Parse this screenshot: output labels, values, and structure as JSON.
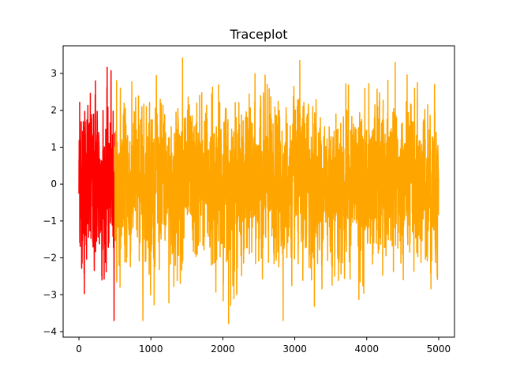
{
  "chart_data": {
    "type": "line",
    "title": "Traceplot",
    "xlabel": "",
    "ylabel": "",
    "xlim": [
      -220,
      5220
    ],
    "ylim": [
      -4.15,
      3.75
    ],
    "xticks": [
      0,
      1000,
      2000,
      3000,
      4000,
      5000
    ],
    "yticks": [
      -4,
      -3,
      -2,
      -1,
      0,
      1,
      2,
      3
    ],
    "tick_label_format": "minus-sign",
    "n_samples": 5000,
    "series": [
      {
        "color": "#ff0000",
        "x_range": [
          0,
          499
        ],
        "values_summary": "burn-in segment oscillating between about -3.0 and 2.8"
      },
      {
        "color": "#ffa500",
        "x_range": [
          500,
          4999
        ],
        "values_summary": "main segment oscillating roughly between -3.8 and 3.4, centered near 0"
      }
    ],
    "notable_points": [
      {
        "x": 1440,
        "y": 3.42
      },
      {
        "x": 3070,
        "y": 3.35
      },
      {
        "x": 2080,
        "y": -3.78
      },
      {
        "x": 1250,
        "y": -3.22
      },
      {
        "x": 75,
        "y": -2.97
      },
      {
        "x": 10,
        "y": -2.75
      },
      {
        "x": 10,
        "y": 2.22
      },
      {
        "x": 230,
        "y": 2.8
      }
    ]
  }
}
